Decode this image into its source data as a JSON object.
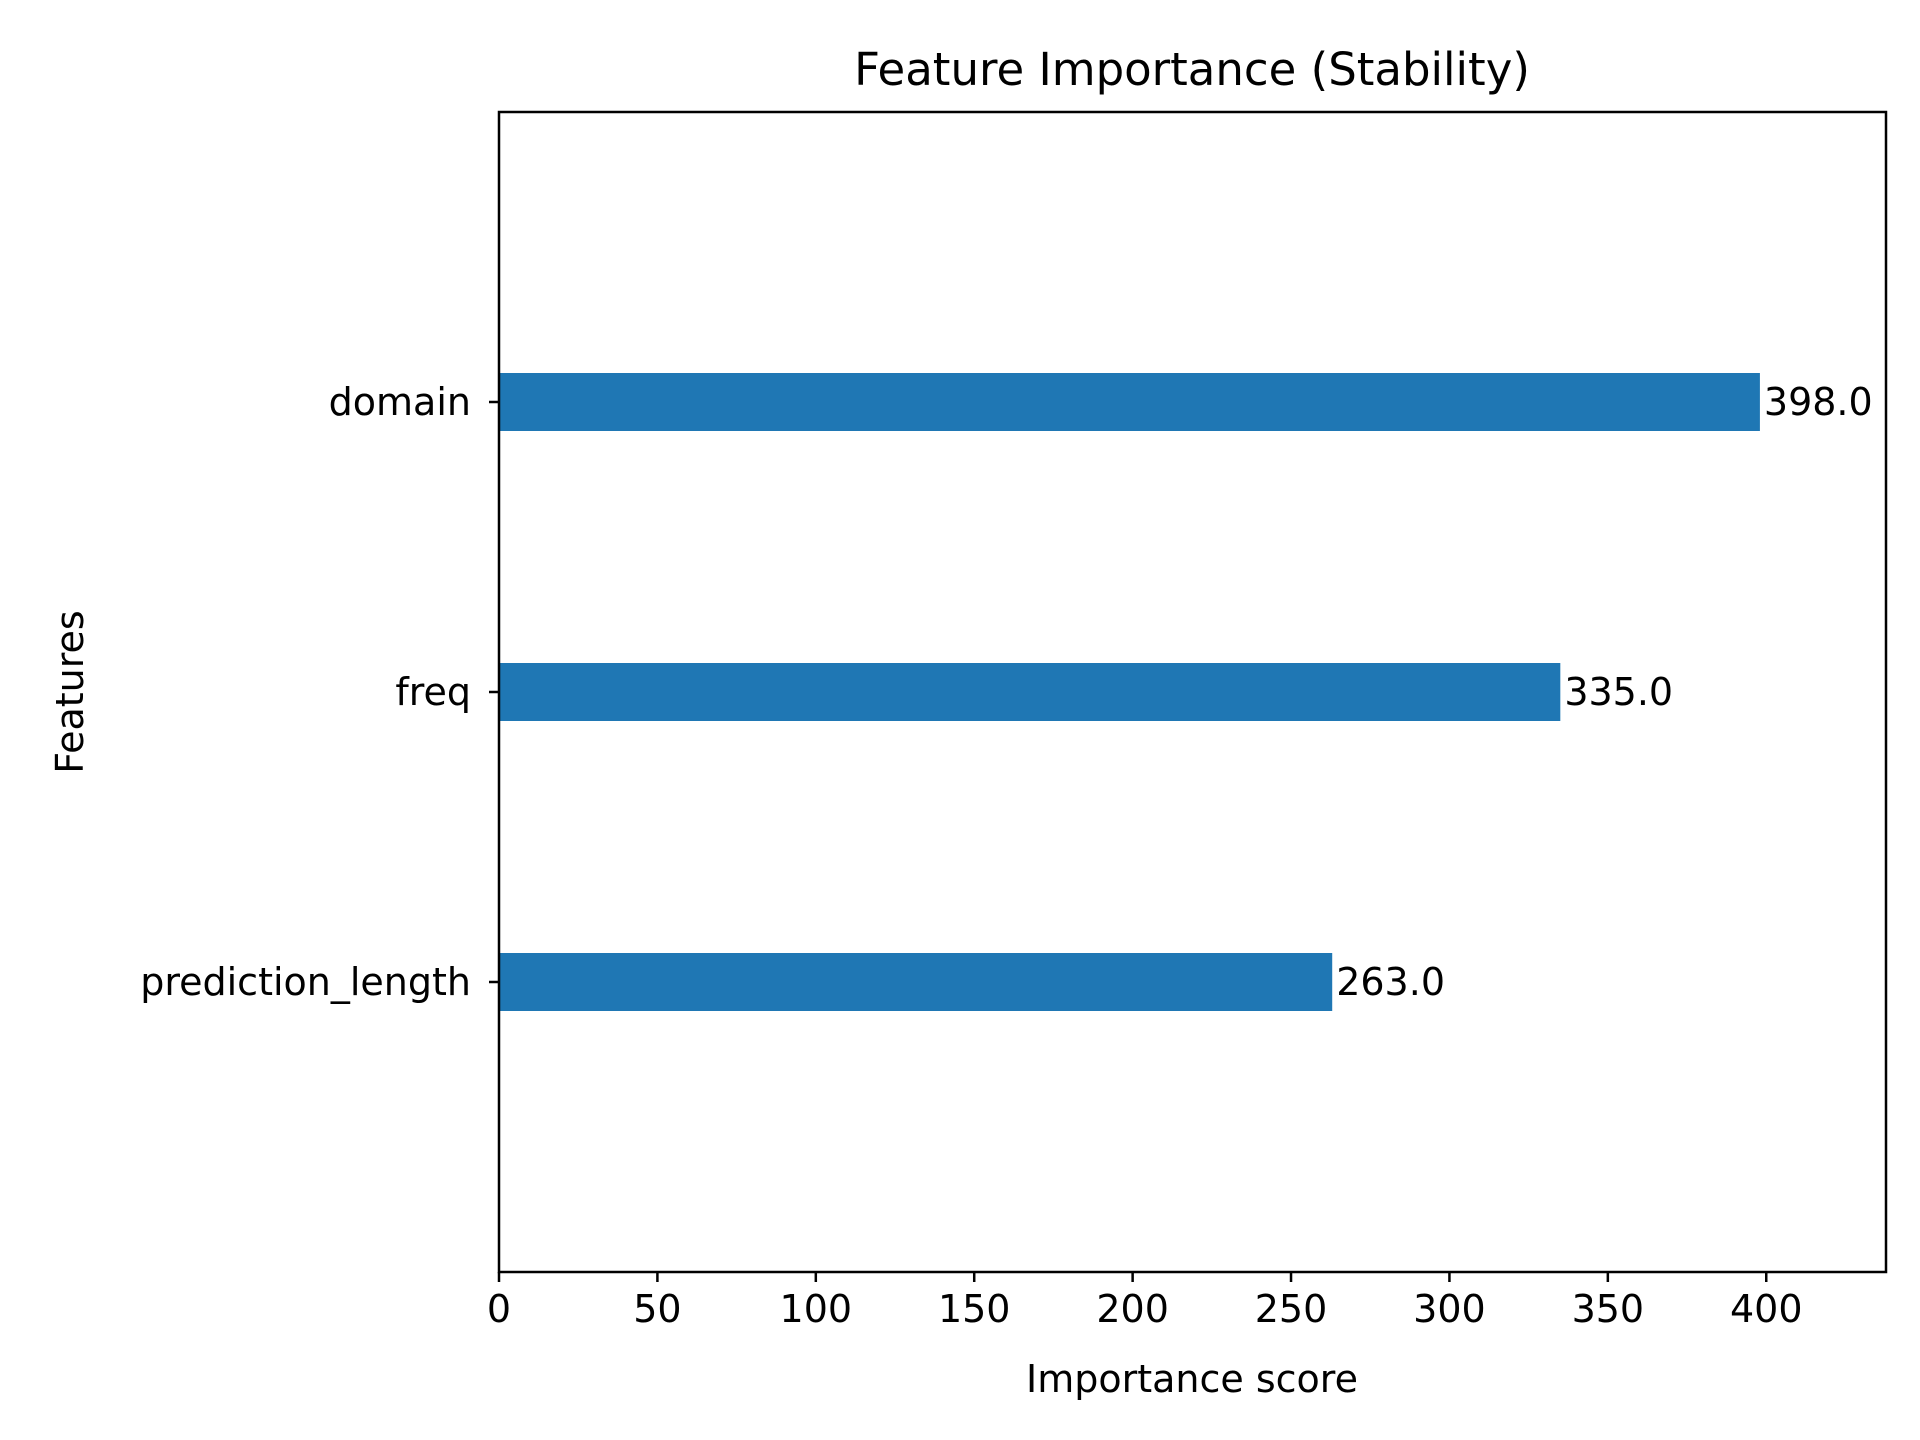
{
  "chart_data": {
    "type": "bar",
    "orientation": "horizontal",
    "title": "Feature Importance (Stability)",
    "xlabel": "Importance score",
    "ylabel": "Features",
    "categories": [
      "domain",
      "freq",
      "prediction_length"
    ],
    "values": [
      398.0,
      335.0,
      263.0
    ],
    "data_labels": [
      "398.0",
      "335.0",
      "263.0"
    ],
    "xlim": [
      0,
      437.8
    ],
    "xticks": [
      0,
      50,
      100,
      150,
      200,
      250,
      300,
      350,
      400
    ],
    "xtick_labels": [
      "0",
      "50",
      "100",
      "150",
      "200",
      "250",
      "300",
      "350",
      "400"
    ],
    "grid": false,
    "legend": "none",
    "bar_color": "#1f77b4"
  }
}
